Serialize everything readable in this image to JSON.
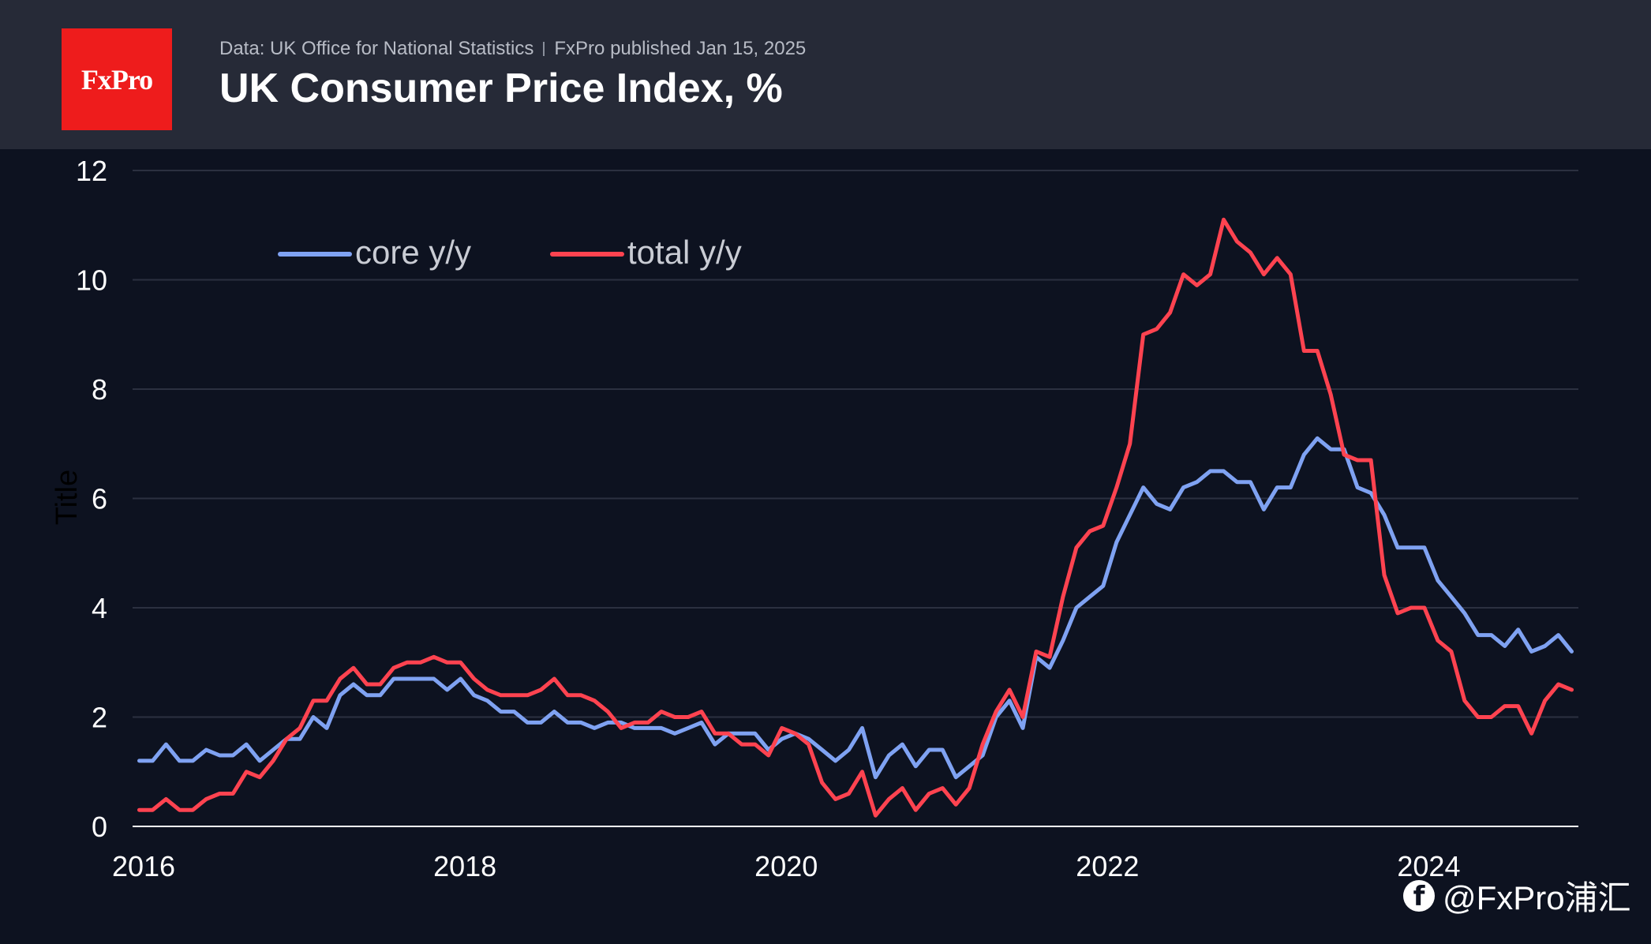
{
  "header": {
    "logo_text": "FxPro",
    "source": "Data: UK Office for National Statistics",
    "published": "FxPro published Jan 15, 2025",
    "title": "UK Consumer Price Index, %"
  },
  "watermark": {
    "icon": "facebook-icon",
    "text": "@FxPro浦汇"
  },
  "colors": {
    "background": "#0d1220",
    "header_bg": "#262a37",
    "logo_bg": "#ee1c1c",
    "core": "#7fa2f2",
    "total": "#ff4350",
    "grid": "#2b3040",
    "axis": "#ffffff"
  },
  "chart_data": {
    "type": "line",
    "ylabel": "Title",
    "xlim": [
      2016,
      2025
    ],
    "ylim": [
      0,
      12
    ],
    "yticks": [
      0,
      2,
      4,
      6,
      8,
      10,
      12
    ],
    "xticks": [
      2016,
      2018,
      2020,
      2022,
      2024
    ],
    "grid": true,
    "legend_position": "top-left",
    "x_start": "2016-01",
    "x_frequency": "monthly",
    "series": [
      {
        "name": "core y/y",
        "color": "#7fa2f2",
        "values": [
          1.2,
          1.2,
          1.5,
          1.2,
          1.2,
          1.4,
          1.3,
          1.3,
          1.5,
          1.2,
          1.4,
          1.6,
          1.6,
          2.0,
          1.8,
          2.4,
          2.6,
          2.4,
          2.4,
          2.7,
          2.7,
          2.7,
          2.7,
          2.5,
          2.7,
          2.4,
          2.3,
          2.1,
          2.1,
          1.9,
          1.9,
          2.1,
          1.9,
          1.9,
          1.8,
          1.9,
          1.9,
          1.8,
          1.8,
          1.8,
          1.7,
          1.8,
          1.9,
          1.5,
          1.7,
          1.7,
          1.7,
          1.4,
          1.6,
          1.7,
          1.6,
          1.4,
          1.2,
          1.4,
          1.8,
          0.9,
          1.3,
          1.5,
          1.1,
          1.4,
          1.4,
          0.9,
          1.1,
          1.3,
          2.0,
          2.3,
          1.8,
          3.1,
          2.9,
          3.4,
          4.0,
          4.2,
          4.4,
          5.2,
          5.7,
          6.2,
          5.9,
          5.8,
          6.2,
          6.3,
          6.5,
          6.5,
          6.3,
          6.3,
          5.8,
          6.2,
          6.2,
          6.8,
          7.1,
          6.9,
          6.9,
          6.2,
          6.1,
          5.7,
          5.1,
          5.1,
          5.1,
          4.5,
          4.2,
          3.9,
          3.5,
          3.5,
          3.3,
          3.6,
          3.2,
          3.3,
          3.5,
          3.2
        ]
      },
      {
        "name": "total y/y",
        "color": "#ff4350",
        "values": [
          0.3,
          0.3,
          0.5,
          0.3,
          0.3,
          0.5,
          0.6,
          0.6,
          1.0,
          0.9,
          1.2,
          1.6,
          1.8,
          2.3,
          2.3,
          2.7,
          2.9,
          2.6,
          2.6,
          2.9,
          3.0,
          3.0,
          3.1,
          3.0,
          3.0,
          2.7,
          2.5,
          2.4,
          2.4,
          2.4,
          2.5,
          2.7,
          2.4,
          2.4,
          2.3,
          2.1,
          1.8,
          1.9,
          1.9,
          2.1,
          2.0,
          2.0,
          2.1,
          1.7,
          1.7,
          1.5,
          1.5,
          1.3,
          1.8,
          1.7,
          1.5,
          0.8,
          0.5,
          0.6,
          1.0,
          0.2,
          0.5,
          0.7,
          0.3,
          0.6,
          0.7,
          0.4,
          0.7,
          1.5,
          2.1,
          2.5,
          2.0,
          3.2,
          3.1,
          4.2,
          5.1,
          5.4,
          5.5,
          6.2,
          7.0,
          9.0,
          9.1,
          9.4,
          10.1,
          9.9,
          10.1,
          11.1,
          10.7,
          10.5,
          10.1,
          10.4,
          10.1,
          8.7,
          8.7,
          7.9,
          6.8,
          6.7,
          6.7,
          4.6,
          3.9,
          4.0,
          4.0,
          3.4,
          3.2,
          2.3,
          2.0,
          2.0,
          2.2,
          2.2,
          1.7,
          2.3,
          2.6,
          2.5
        ]
      }
    ]
  }
}
